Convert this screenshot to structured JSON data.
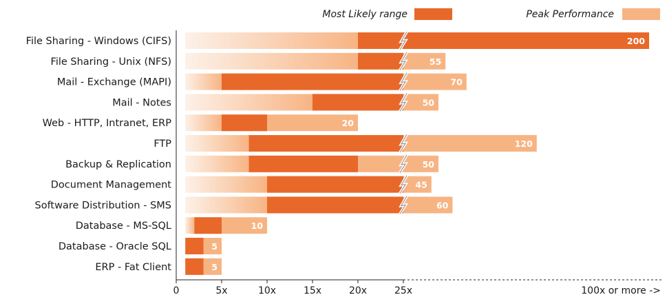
{
  "chart_data": {
    "type": "bar",
    "legend": {
      "most_likely": {
        "label": "Most Likely range",
        "color": "#e8682a"
      },
      "peak": {
        "label": "Peak Performance",
        "color": "#f7b483"
      }
    },
    "categories": [
      "File Sharing - Windows (CIFS)",
      "File Sharing - Unix (NFS)",
      "Mail - Exchange (MAPI)",
      "Mail - Notes",
      "Web - HTTP, Intranet, ERP",
      "FTP",
      "Backup & Replication",
      "Document Management",
      "Software Distribution - SMS",
      "Database - MS-SQL",
      "Database - Oracle SQL",
      "ERP - Fat Client"
    ],
    "most_likely_range": [
      [
        20,
        200
      ],
      [
        20,
        25
      ],
      [
        5,
        25
      ],
      [
        15,
        25
      ],
      [
        5,
        10
      ],
      [
        8,
        25
      ],
      [
        8,
        20
      ],
      [
        10,
        25
      ],
      [
        10,
        25
      ],
      [
        2,
        5
      ],
      [
        1,
        3
      ],
      [
        1,
        3
      ]
    ],
    "peak_values": [
      200,
      55,
      70,
      50,
      20,
      120,
      50,
      45,
      60,
      10,
      5,
      5
    ],
    "value_labels": [
      "200",
      "55",
      "70",
      "50",
      "20",
      "120",
      "50",
      "45",
      "60",
      "10",
      "5",
      "5"
    ],
    "x_ticks": [
      "0",
      "5x",
      "10x",
      "15x",
      "20x",
      "25x",
      "100x or more ->"
    ],
    "xlim": [
      0,
      25
    ],
    "axis_break_at": 25,
    "grid": false,
    "legend_position": "top-right"
  }
}
